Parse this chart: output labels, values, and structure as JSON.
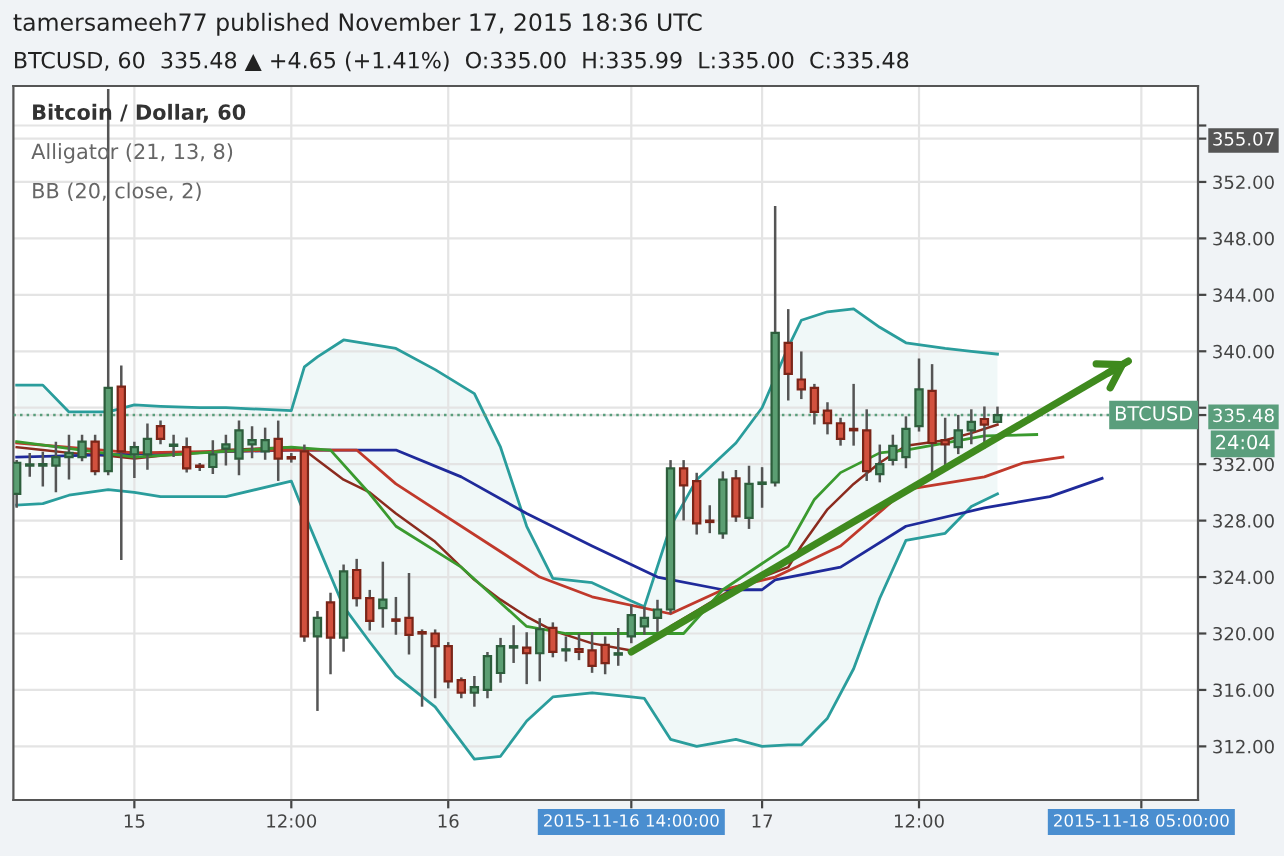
{
  "chart_data": {
    "type": "candlestick",
    "title": "tamersameeh77 published November 17, 2015 18:36 UTC",
    "subtitle": "BTCUSD, 60  335.48 ▲ +4.65 (+1.41%)  O:335.00  H:335.99  L:335.00  C:335.48",
    "annotations": [
      "Bitcoin / Dollar, 60",
      "Alligator (21, 13, 8)",
      "BB (20, close, 2)",
      "24:04"
    ],
    "x": [
      "2015-11-14T15:00",
      "2015-11-14T16:00",
      "2015-11-14T17:00",
      "2015-11-14T18:00",
      "2015-11-14T19:00",
      "2015-11-14T20:00",
      "2015-11-14T21:00",
      "2015-11-14T22:00",
      "2015-11-14T23:00",
      "2015-11-15T00:00",
      "2015-11-15T01:00",
      "2015-11-15T02:00",
      "2015-11-15T03:00",
      "2015-11-15T04:00",
      "2015-11-15T05:00",
      "2015-11-15T06:00",
      "2015-11-15T07:00",
      "2015-11-15T08:00",
      "2015-11-15T09:00",
      "2015-11-15T10:00",
      "2015-11-15T11:00",
      "2015-11-15T12:00",
      "2015-11-15T13:00",
      "2015-11-15T14:00",
      "2015-11-15T15:00",
      "2015-11-15T16:00",
      "2015-11-15T17:00",
      "2015-11-15T18:00",
      "2015-11-15T19:00",
      "2015-11-15T20:00",
      "2015-11-15T21:00",
      "2015-11-15T22:00",
      "2015-11-15T23:00",
      "2015-11-16T00:00",
      "2015-11-16T01:00",
      "2015-11-16T02:00",
      "2015-11-16T03:00",
      "2015-11-16T04:00",
      "2015-11-16T05:00",
      "2015-11-16T06:00",
      "2015-11-16T07:00",
      "2015-11-16T08:00",
      "2015-11-16T09:00",
      "2015-11-16T10:00",
      "2015-11-16T11:00",
      "2015-11-16T12:00",
      "2015-11-16T13:00",
      "2015-11-16T14:00",
      "2015-11-16T15:00",
      "2015-11-16T16:00",
      "2015-11-16T17:00",
      "2015-11-16T18:00",
      "2015-11-16T19:00",
      "2015-11-16T20:00",
      "2015-11-16T21:00",
      "2015-11-16T22:00",
      "2015-11-16T23:00",
      "2015-11-17T00:00",
      "2015-11-17T01:00",
      "2015-11-17T02:00",
      "2015-11-17T03:00",
      "2015-11-17T04:00",
      "2015-11-17T05:00",
      "2015-11-17T06:00",
      "2015-11-17T07:00",
      "2015-11-17T08:00",
      "2015-11-17T09:00",
      "2015-11-17T10:00",
      "2015-11-17T11:00",
      "2015-11-17T12:00",
      "2015-11-17T13:00",
      "2015-11-17T14:00",
      "2015-11-17T15:00",
      "2015-11-17T16:00",
      "2015-11-17T17:00",
      "2015-11-17T18:00"
    ],
    "ohlc": [
      [
        329.9,
        332.2,
        329.0,
        332.1
      ],
      [
        331.9,
        332.7,
        331.2,
        331.9
      ],
      [
        331.9,
        332.8,
        330.5,
        332.0
      ],
      [
        331.9,
        333.5,
        330.1,
        332.5
      ],
      [
        332.5,
        334.0,
        331.0,
        332.8
      ],
      [
        332.5,
        334.0,
        332.3,
        333.6
      ],
      [
        333.6,
        334.0,
        331.3,
        331.5
      ],
      [
        331.5,
        358.5,
        331.3,
        337.4
      ],
      [
        337.5,
        338.9,
        325.3,
        332.9
      ],
      [
        332.7,
        333.5,
        331.1,
        333.2
      ],
      [
        332.7,
        334.8,
        331.7,
        333.8
      ],
      [
        334.7,
        335.0,
        333.5,
        333.8
      ],
      [
        333.3,
        334.0,
        332.6,
        333.3
      ],
      [
        333.2,
        333.8,
        331.5,
        331.7
      ],
      [
        331.9,
        332.0,
        331.6,
        331.8
      ],
      [
        331.8,
        333.6,
        331.4,
        332.7
      ],
      [
        333.1,
        334.0,
        332.0,
        333.4
      ],
      [
        332.4,
        335.0,
        331.3,
        334.4
      ],
      [
        333.4,
        334.6,
        332.5,
        333.7
      ],
      [
        332.9,
        334.5,
        332.4,
        333.7
      ],
      [
        333.8,
        335.0,
        330.9,
        332.4
      ],
      [
        332.5,
        332.7,
        332.2,
        332.4
      ],
      [
        332.9,
        333.3,
        319.5,
        319.8
      ],
      [
        319.8,
        321.5,
        314.6,
        321.1
      ],
      [
        322.2,
        322.8,
        317.2,
        319.7
      ],
      [
        319.7,
        324.8,
        318.8,
        324.4
      ],
      [
        324.5,
        325.2,
        322.0,
        322.5
      ],
      [
        322.5,
        323.0,
        320.3,
        320.9
      ],
      [
        321.8,
        325.0,
        320.5,
        322.4
      ],
      [
        321.0,
        322.5,
        320.0,
        320.9
      ],
      [
        321.1,
        324.2,
        318.6,
        319.9
      ],
      [
        320.1,
        320.2,
        314.9,
        320.0
      ],
      [
        320.0,
        320.2,
        315.5,
        319.1
      ],
      [
        319.1,
        319.3,
        316.2,
        316.6
      ],
      [
        316.7,
        316.8,
        315.5,
        315.8
      ],
      [
        315.8,
        316.9,
        314.9,
        316.2
      ],
      [
        316.0,
        318.6,
        315.5,
        318.4
      ],
      [
        317.2,
        319.6,
        316.6,
        319.1
      ],
      [
        319.0,
        320.5,
        318.0,
        319.1
      ],
      [
        319.0,
        320.0,
        316.5,
        318.6
      ],
      [
        318.6,
        321.0,
        316.7,
        320.3
      ],
      [
        320.4,
        320.7,
        318.4,
        318.7
      ],
      [
        318.8,
        319.7,
        318.1,
        318.8
      ],
      [
        318.9,
        319.9,
        318.2,
        318.7
      ],
      [
        318.8,
        320.0,
        317.3,
        317.7
      ],
      [
        319.2,
        319.7,
        317.2,
        317.9
      ],
      [
        318.5,
        320.3,
        317.8,
        318.6
      ],
      [
        319.8,
        322.0,
        319.4,
        321.3
      ],
      [
        320.5,
        321.8,
        320.0,
        321.1
      ],
      [
        321.1,
        322.3,
        320.2,
        321.7
      ],
      [
        321.7,
        332.2,
        321.5,
        331.7
      ],
      [
        331.7,
        332.2,
        328.1,
        330.5
      ],
      [
        330.8,
        331.3,
        327.1,
        327.8
      ],
      [
        328.0,
        329.0,
        327.2,
        327.9
      ],
      [
        327.1,
        331.4,
        326.8,
        330.9
      ],
      [
        331.0,
        331.5,
        328.0,
        328.3
      ],
      [
        328.2,
        331.8,
        327.5,
        330.6
      ],
      [
        330.6,
        331.7,
        329.0,
        330.7
      ],
      [
        330.7,
        350.2,
        330.5,
        341.3
      ],
      [
        340.6,
        342.9,
        336.6,
        338.4
      ],
      [
        338.0,
        339.9,
        336.7,
        337.3
      ],
      [
        337.4,
        337.6,
        334.9,
        335.7
      ],
      [
        335.8,
        336.3,
        334.2,
        334.9
      ],
      [
        334.9,
        335.2,
        333.4,
        333.8
      ],
      [
        334.5,
        337.6,
        333.4,
        334.4
      ],
      [
        334.4,
        335.8,
        330.9,
        331.5
      ],
      [
        331.3,
        333.3,
        330.8,
        332.0
      ],
      [
        332.3,
        334.0,
        332.0,
        333.3
      ],
      [
        332.5,
        335.3,
        331.8,
        334.5
      ],
      [
        334.7,
        339.4,
        334.4,
        337.3
      ],
      [
        337.2,
        339.0,
        331.3,
        333.5
      ],
      [
        333.7,
        335.2,
        331.6,
        333.4
      ],
      [
        333.2,
        335.4,
        332.8,
        334.4
      ],
      [
        334.4,
        335.8,
        333.5,
        335.0
      ],
      [
        335.2,
        336.0,
        333.2,
        334.8
      ],
      [
        335.0,
        335.99,
        335.0,
        335.48
      ]
    ],
    "series": [
      {
        "type": "line",
        "color": "#2a9d9c",
        "x": [
          "2015-11-14T15:00",
          "2015-11-14T17:00",
          "2015-11-14T19:00",
          "2015-11-14T22:00",
          "2015-11-15T00:00",
          "2015-11-15T02:00",
          "2015-11-15T05:00",
          "2015-11-15T07:00",
          "2015-11-15T12:00",
          "2015-11-15T13:00",
          "2015-11-15T14:00",
          "2015-11-15T16:00",
          "2015-11-15T18:00",
          "2015-11-15T20:00",
          "2015-11-15T23:00",
          "2015-11-16T02:00",
          "2015-11-16T04:00",
          "2015-11-16T06:00",
          "2015-11-16T08:00",
          "2015-11-16T11:00",
          "2015-11-16T14:00",
          "2015-11-16T15:00",
          "2015-11-16T17:00",
          "2015-11-16T19:00",
          "2015-11-16T22:00",
          "2015-11-17T00:00",
          "2015-11-17T02:00",
          "2015-11-17T03:00",
          "2015-11-17T05:00",
          "2015-11-17T07:00",
          "2015-11-17T09:00",
          "2015-11-17T11:00",
          "2015-11-17T14:00",
          "2015-11-17T16:00",
          "2015-11-17T18:00"
        ],
        "values": [
          337.6,
          337.6,
          335.7,
          335.7,
          336.2,
          336.1,
          336.0,
          336.0,
          335.8,
          338.9,
          339.6,
          340.8,
          340.5,
          340.2,
          338.7,
          337.0,
          333.2,
          327.6,
          323.9,
          323.6,
          322.3,
          321.9,
          327.6,
          330.9,
          333.5,
          336.0,
          340.3,
          342.2,
          342.8,
          343.0,
          341.7,
          340.6,
          340.2,
          340.0,
          339.8
        ]
      },
      {
        "type": "line",
        "color": "#2a9d9c",
        "x": [
          "2015-11-14T15:00",
          "2015-11-14T17:00",
          "2015-11-14T19:00",
          "2015-11-14T22:00",
          "2015-11-15T00:00",
          "2015-11-15T02:00",
          "2015-11-15T05:00",
          "2015-11-15T07:00",
          "2015-11-15T12:00",
          "2015-11-15T13:00",
          "2015-11-15T14:00",
          "2015-11-15T16:00",
          "2015-11-15T18:00",
          "2015-11-15T20:00",
          "2015-11-15T23:00",
          "2015-11-16T02:00",
          "2015-11-16T04:00",
          "2015-11-16T06:00",
          "2015-11-16T08:00",
          "2015-11-16T11:00",
          "2015-11-16T14:00",
          "2015-11-16T15:00",
          "2015-11-16T17:00",
          "2015-11-16T19:00",
          "2015-11-16T22:00",
          "2015-11-17T00:00",
          "2015-11-17T02:00",
          "2015-11-17T03:00",
          "2015-11-17T05:00",
          "2015-11-17T07:00",
          "2015-11-17T09:00",
          "2015-11-17T11:00",
          "2015-11-17T14:00",
          "2015-11-17T16:00",
          "2015-11-17T18:00"
        ],
        "values": [
          329.1,
          329.2,
          329.8,
          330.2,
          330.0,
          329.7,
          329.7,
          329.7,
          330.8,
          328.5,
          326.3,
          321.9,
          319.4,
          317.0,
          314.8,
          311.1,
          311.3,
          313.8,
          315.5,
          315.8,
          315.5,
          315.4,
          312.5,
          312.0,
          312.5,
          312.0,
          312.1,
          312.1,
          314.0,
          317.5,
          322.5,
          326.6,
          327.1,
          329.0,
          329.9
        ]
      },
      {
        "type": "line",
        "color": "#8b2b1e",
        "x": [
          "2015-11-14T15:00",
          "2015-11-14T17:00",
          "2015-11-14T19:00",
          "2015-11-14T22:00",
          "2015-11-15T00:00",
          "2015-11-15T02:00",
          "2015-11-15T05:00",
          "2015-11-15T07:00",
          "2015-11-15T12:00",
          "2015-11-15T13:00",
          "2015-11-15T14:00",
          "2015-11-15T16:00",
          "2015-11-15T18:00",
          "2015-11-15T20:00",
          "2015-11-15T23:00",
          "2015-11-16T02:00",
          "2015-11-16T04:00",
          "2015-11-16T06:00",
          "2015-11-16T08:00",
          "2015-11-16T11:00",
          "2015-11-16T14:00",
          "2015-11-16T15:00",
          "2015-11-16T17:00",
          "2015-11-16T19:00",
          "2015-11-16T22:00",
          "2015-11-17T00:00",
          "2015-11-17T02:00",
          "2015-11-17T03:00",
          "2015-11-17T05:00",
          "2015-11-17T07:00",
          "2015-11-17T09:00",
          "2015-11-17T11:00",
          "2015-11-17T14:00",
          "2015-11-17T16:00",
          "2015-11-17T18:00"
        ],
        "values": [
          333.2,
          333.0,
          332.8,
          332.6,
          332.4,
          332.6,
          332.8,
          333.0,
          333.2,
          333.0,
          332.3,
          330.9,
          330.0,
          328.5,
          326.5,
          323.8,
          322.4,
          321.2,
          320.2,
          319.3,
          318.8,
          319.2,
          320.5,
          321.6,
          323.3,
          324.0,
          324.7,
          326.2,
          328.8,
          330.6,
          332.1,
          333.3,
          333.7,
          334.2,
          334.8
        ],
        "upper": [
          337.6,
          337.6,
          335.7,
          335.7,
          336.2,
          336.1,
          336.0,
          336.0,
          335.8,
          338.9,
          339.6,
          340.8,
          340.5,
          340.2,
          338.7,
          337.0,
          333.2,
          327.6,
          323.9,
          323.6,
          322.3,
          321.9,
          327.6,
          330.9,
          333.5,
          336.0,
          340.3,
          342.2,
          342.8,
          343.0,
          341.7,
          340.6,
          340.2,
          340.0,
          339.8
        ],
        "lower": [
          329.1,
          329.2,
          329.8,
          330.2,
          330.0,
          329.7,
          329.7,
          329.7,
          330.8,
          328.5,
          326.3,
          321.9,
          319.4,
          317.0,
          314.8,
          311.1,
          311.3,
          313.8,
          315.5,
          315.8,
          315.5,
          315.4,
          312.5,
          312.0,
          312.5,
          312.0,
          312.1,
          312.1,
          314.0,
          317.5,
          322.5,
          326.6,
          327.1,
          329.0,
          329.9
        ]
      },
      {
        "type": "line",
        "color": "#1f2a9a",
        "x": [
          "2015-11-14T15:00",
          "2015-11-15T12:00",
          "2015-11-15T20:00",
          "2015-11-16T01:00",
          "2015-11-16T06:00",
          "2015-11-16T11:00",
          "2015-11-16T16:00",
          "2015-11-16T21:00",
          "2015-11-17T00:00",
          "2015-11-17T01:00",
          "2015-11-17T06:00",
          "2015-11-17T11:00",
          "2015-11-17T17:00",
          "2015-11-17T22:00",
          "2015-11-18T02:00"
        ],
        "values": [
          332.5,
          333.0,
          333.0,
          331.1,
          328.5,
          326.2,
          324.0,
          323.1,
          323.1,
          323.8,
          324.7,
          327.6,
          328.9,
          329.7,
          331.0
        ]
      },
      {
        "type": "line",
        "color": "#c0392b",
        "x": [
          "2015-11-14T15:00",
          "2015-11-15T00:00",
          "2015-11-15T12:00",
          "2015-11-15T17:00",
          "2015-11-15T20:00",
          "2015-11-16T07:00",
          "2015-11-16T11:00",
          "2015-11-16T17:00",
          "2015-11-16T21:00",
          "2015-11-17T01:00",
          "2015-11-17T06:00",
          "2015-11-17T11:00",
          "2015-11-17T17:00",
          "2015-11-17T20:00",
          "2015-11-17T23:00"
        ],
        "values": [
          333.5,
          332.8,
          333.0,
          333.0,
          330.6,
          324.0,
          322.6,
          321.4,
          323.1,
          324.0,
          326.2,
          330.2,
          331.1,
          332.1,
          332.5
        ]
      },
      {
        "type": "line",
        "color": "#3a9a2e",
        "x": [
          "2015-11-14T15:00",
          "2015-11-15T00:00",
          "2015-11-15T12:00",
          "2015-11-15T15:00",
          "2015-11-15T18:00",
          "2015-11-15T20:00",
          "2015-11-16T01:00",
          "2015-11-16T06:00",
          "2015-11-16T09:00",
          "2015-11-16T13:00",
          "2015-11-16T18:00",
          "2015-11-16T21:00",
          "2015-11-17T02:00",
          "2015-11-17T04:00",
          "2015-11-17T06:00",
          "2015-11-17T09:00",
          "2015-11-17T11:00",
          "2015-11-17T17:00",
          "2015-11-17T21:00"
        ],
        "values": [
          333.6,
          332.5,
          333.2,
          333.0,
          329.9,
          327.6,
          324.7,
          320.5,
          320.0,
          320.0,
          320.0,
          323.1,
          326.2,
          329.5,
          331.4,
          332.8,
          333.0,
          334.0,
          334.1
        ]
      },
      {
        "type": "line",
        "color": "#3f8a1e",
        "x": [
          "2015-11-16T14:00",
          "2015-11-18T04:00"
        ],
        "values": [
          318.7,
          339.3
        ]
      }
    ],
    "ref_lines": [
      {
        "axis": "y",
        "value": 335.48,
        "label": "BTCUSD",
        "color": "#5a9e7c",
        "line_style": "dotted"
      }
    ],
    "xlim": [
      "2015-11-14T14:45",
      "2015-11-18T09:20"
    ],
    "xticks": [
      {
        "value": "2015-11-15T00:00",
        "label": "15"
      },
      {
        "value": "2015-11-15T12:00",
        "label": "12:00"
      },
      {
        "value": "2015-11-16T00:00",
        "label": "16"
      },
      {
        "value": "2015-11-16T14:00",
        "label": "2015-11-16 14:00:00"
      },
      {
        "value": "2015-11-17T00:00",
        "label": "17"
      },
      {
        "value": "2015-11-17T12:00",
        "label": "12:00"
      },
      {
        "value": "2015-11-18T05:00",
        "label": "2015-11-18 05:00:00"
      }
    ],
    "ylim": [
      308.2,
      358.8
    ],
    "yticks": [
      {
        "value": 312,
        "label": "312.00"
      },
      {
        "value": 316,
        "label": "316.00"
      },
      {
        "value": 320,
        "label": "320.00"
      },
      {
        "value": 324,
        "label": "324.00"
      },
      {
        "value": 328,
        "label": "328.00"
      },
      {
        "value": 332,
        "label": "332.00"
      },
      {
        "value": 336,
        "label": null
      },
      {
        "value": 340,
        "label": "340.00"
      },
      {
        "value": 344,
        "label": "344.00"
      },
      {
        "value": 348,
        "label": "348.00"
      },
      {
        "value": 352,
        "label": "352.00"
      },
      {
        "value": 355.07,
        "label": "355.07"
      },
      {
        "value": 335.48,
        "label": "335.48"
      },
      {
        "value": 356,
        "label": null
      }
    ],
    "grid": true,
    "legend": false
  }
}
